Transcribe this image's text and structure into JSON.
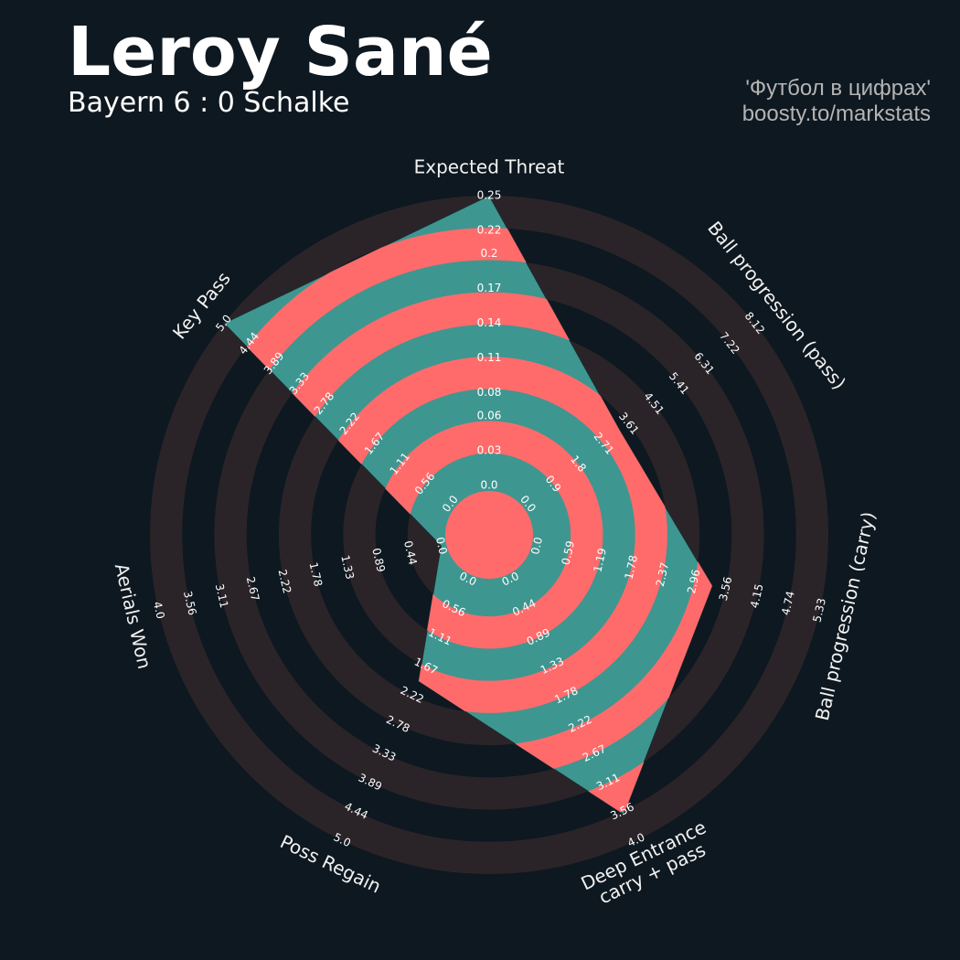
{
  "chart_data": {
    "type": "radar",
    "title": "Leroy Sané",
    "subtitle": "Bayern 6 : 0 Schalke",
    "credits": [
      "'Футбол в цифрах'",
      "boosty.to/markstats"
    ],
    "color": "#3e9690",
    "alt_color": "#ff6b6b",
    "ring_color": "#2a2429",
    "categories": [
      "Expected Threat",
      "Ball progression (pass)",
      "Ball progression (carry)",
      [
        "Deep Entrance",
        "carry + pass"
      ],
      "Poss Regain",
      "Aerials Won",
      "Key Pass"
    ],
    "values": [
      0.25,
      3.3,
      3.3,
      3.6,
      1.95,
      0,
      5
    ],
    "axes": [
      {
        "lim": [
          0,
          0.25
        ],
        "ticks": [
          {
            "value": 0,
            "label": "0.0"
          },
          0.03,
          0.06,
          0.08,
          0.11,
          0.14,
          0.17,
          0.2,
          0.22,
          0.25
        ]
      },
      {
        "lim": [
          0,
          8.12
        ],
        "ticks": [
          {
            "value": 0,
            "label": "0.0"
          },
          0.9,
          1.8,
          2.71,
          3.61,
          4.51,
          5.41,
          6.31,
          7.22,
          8.12
        ]
      },
      {
        "lim": [
          0,
          5.33
        ],
        "ticks": [
          {
            "value": 0,
            "label": "0.0"
          },
          0.59,
          1.19,
          1.78,
          2.37,
          2.96,
          3.56,
          4.15,
          4.74,
          5.33
        ]
      },
      {
        "lim": [
          0,
          4
        ],
        "ticks": [
          {
            "value": 0,
            "label": "0.0"
          },
          0.44,
          0.89,
          1.33,
          1.78,
          2.22,
          2.67,
          3.11,
          3.56,
          {
            "value": 4,
            "label": "4.0"
          }
        ]
      },
      {
        "lim": [
          0,
          5
        ],
        "ticks": [
          {
            "value": 0,
            "label": "0.0"
          },
          0.56,
          1.11,
          1.67,
          2.22,
          2.78,
          3.33,
          3.89,
          4.44,
          {
            "value": 5,
            "label": "5.0"
          }
        ]
      },
      {
        "lim": [
          0,
          4
        ],
        "ticks": [
          {
            "value": 0,
            "label": "0.0"
          },
          0.44,
          0.89,
          1.33,
          1.78,
          2.22,
          2.67,
          3.11,
          3.56,
          {
            "value": 4,
            "label": "4.0"
          }
        ]
      },
      {
        "lim": [
          0,
          5
        ],
        "ticks": [
          {
            "value": 0,
            "label": "0.0"
          },
          0.56,
          1.11,
          1.67,
          2.22,
          2.78,
          3.33,
          3.89,
          4.44,
          {
            "value": 5,
            "label": "5.0"
          }
        ]
      }
    ]
  }
}
